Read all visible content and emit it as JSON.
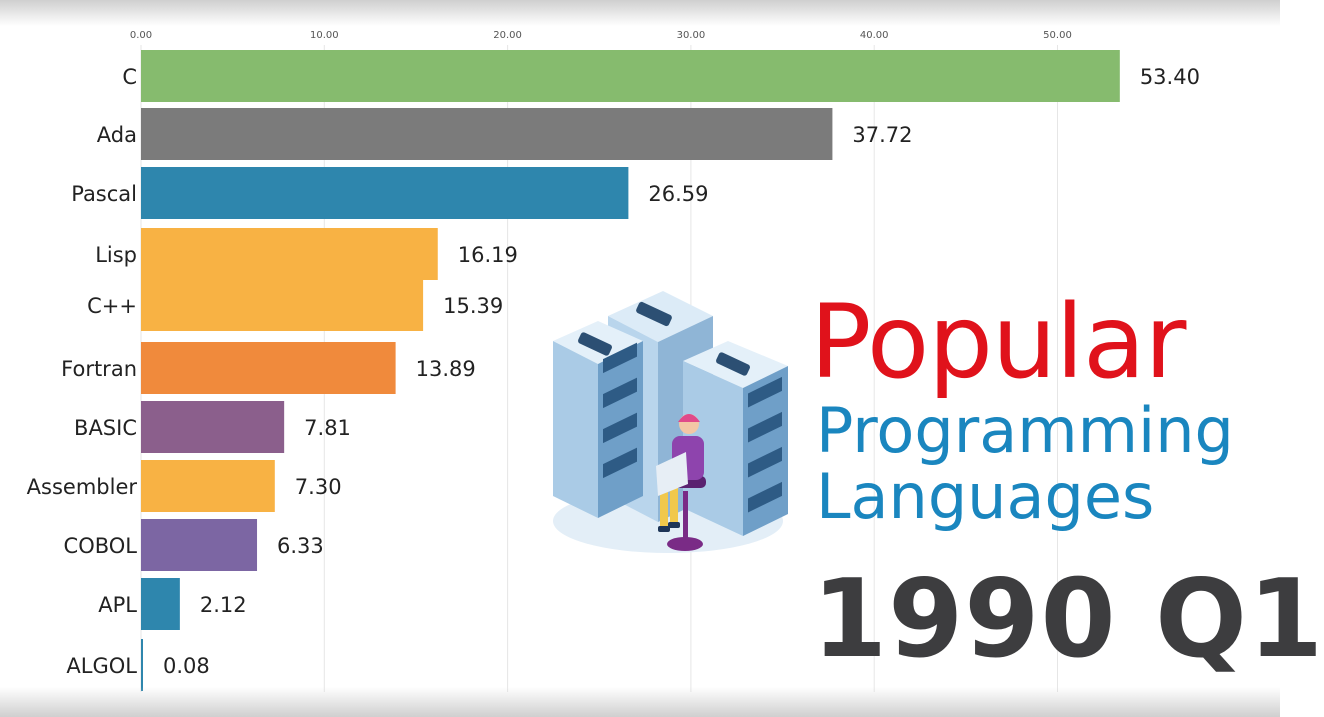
{
  "title": {
    "line1": "Popular",
    "line2": "Programming",
    "line3": "Languages"
  },
  "period": "1990 Q1",
  "chart_data": {
    "type": "bar",
    "orientation": "horizontal",
    "categories": [
      "C",
      "Ada",
      "Pascal",
      "Lisp",
      "C++",
      "Fortran",
      "BASIC",
      "Assembler",
      "COBOL",
      "APL",
      "ALGOL"
    ],
    "values": [
      53.4,
      37.72,
      26.59,
      16.19,
      15.39,
      13.89,
      7.81,
      7.3,
      6.33,
      2.12,
      0.08
    ],
    "value_labels": [
      "53.40",
      "37.72",
      "26.59",
      "16.19",
      "15.39",
      "13.89",
      "7.81",
      "7.30",
      "6.33",
      "2.12",
      "0.08"
    ],
    "colors": [
      "#86bb6e",
      "#7b7b7b",
      "#2e86ad",
      "#f8b244",
      "#f8b244",
      "#f08a3c",
      "#8b5f8c",
      "#f8b244",
      "#7c66a3",
      "#2e86ad",
      "#2e86ad"
    ],
    "xlim": [
      0,
      55
    ],
    "xticks": [
      0,
      10,
      20,
      30,
      40,
      50
    ],
    "xtick_labels": [
      "0.00",
      "10.00",
      "20.00",
      "30.00",
      "40.00",
      "50.00"
    ],
    "xaxis_position": "top",
    "grid": true
  }
}
